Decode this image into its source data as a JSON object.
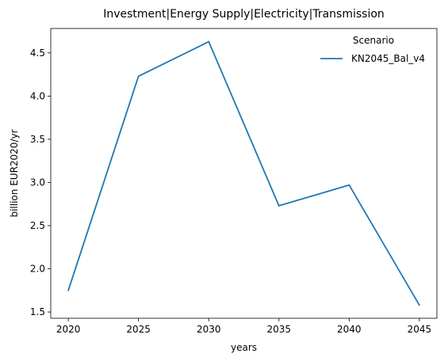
{
  "chart_data": {
    "type": "line",
    "title": "Investment|Energy Supply|Electricity|Transmission",
    "xlabel": "years",
    "ylabel": "billion EUR2020/yr",
    "x": [
      2020,
      2025,
      2030,
      2035,
      2040,
      2045
    ],
    "series": [
      {
        "name": "KN2045_Bal_v4",
        "color": "#1f77b4",
        "values": [
          1.75,
          4.23,
          4.63,
          2.73,
          2.97,
          1.58
        ]
      }
    ],
    "xticks": [
      2020,
      2025,
      2030,
      2035,
      2040,
      2045
    ],
    "yticks": [
      1.5,
      2.0,
      2.5,
      3.0,
      3.5,
      4.0,
      4.5
    ],
    "ytick_labels": [
      "1.5",
      "2.0",
      "2.5",
      "3.0",
      "3.5",
      "4.0",
      "4.5"
    ],
    "xlim": [
      2018.75,
      2046.25
    ],
    "ylim": [
      1.4275,
      4.7825
    ],
    "grid": false,
    "legend": {
      "title": "Scenario",
      "placement": "top-right"
    }
  }
}
